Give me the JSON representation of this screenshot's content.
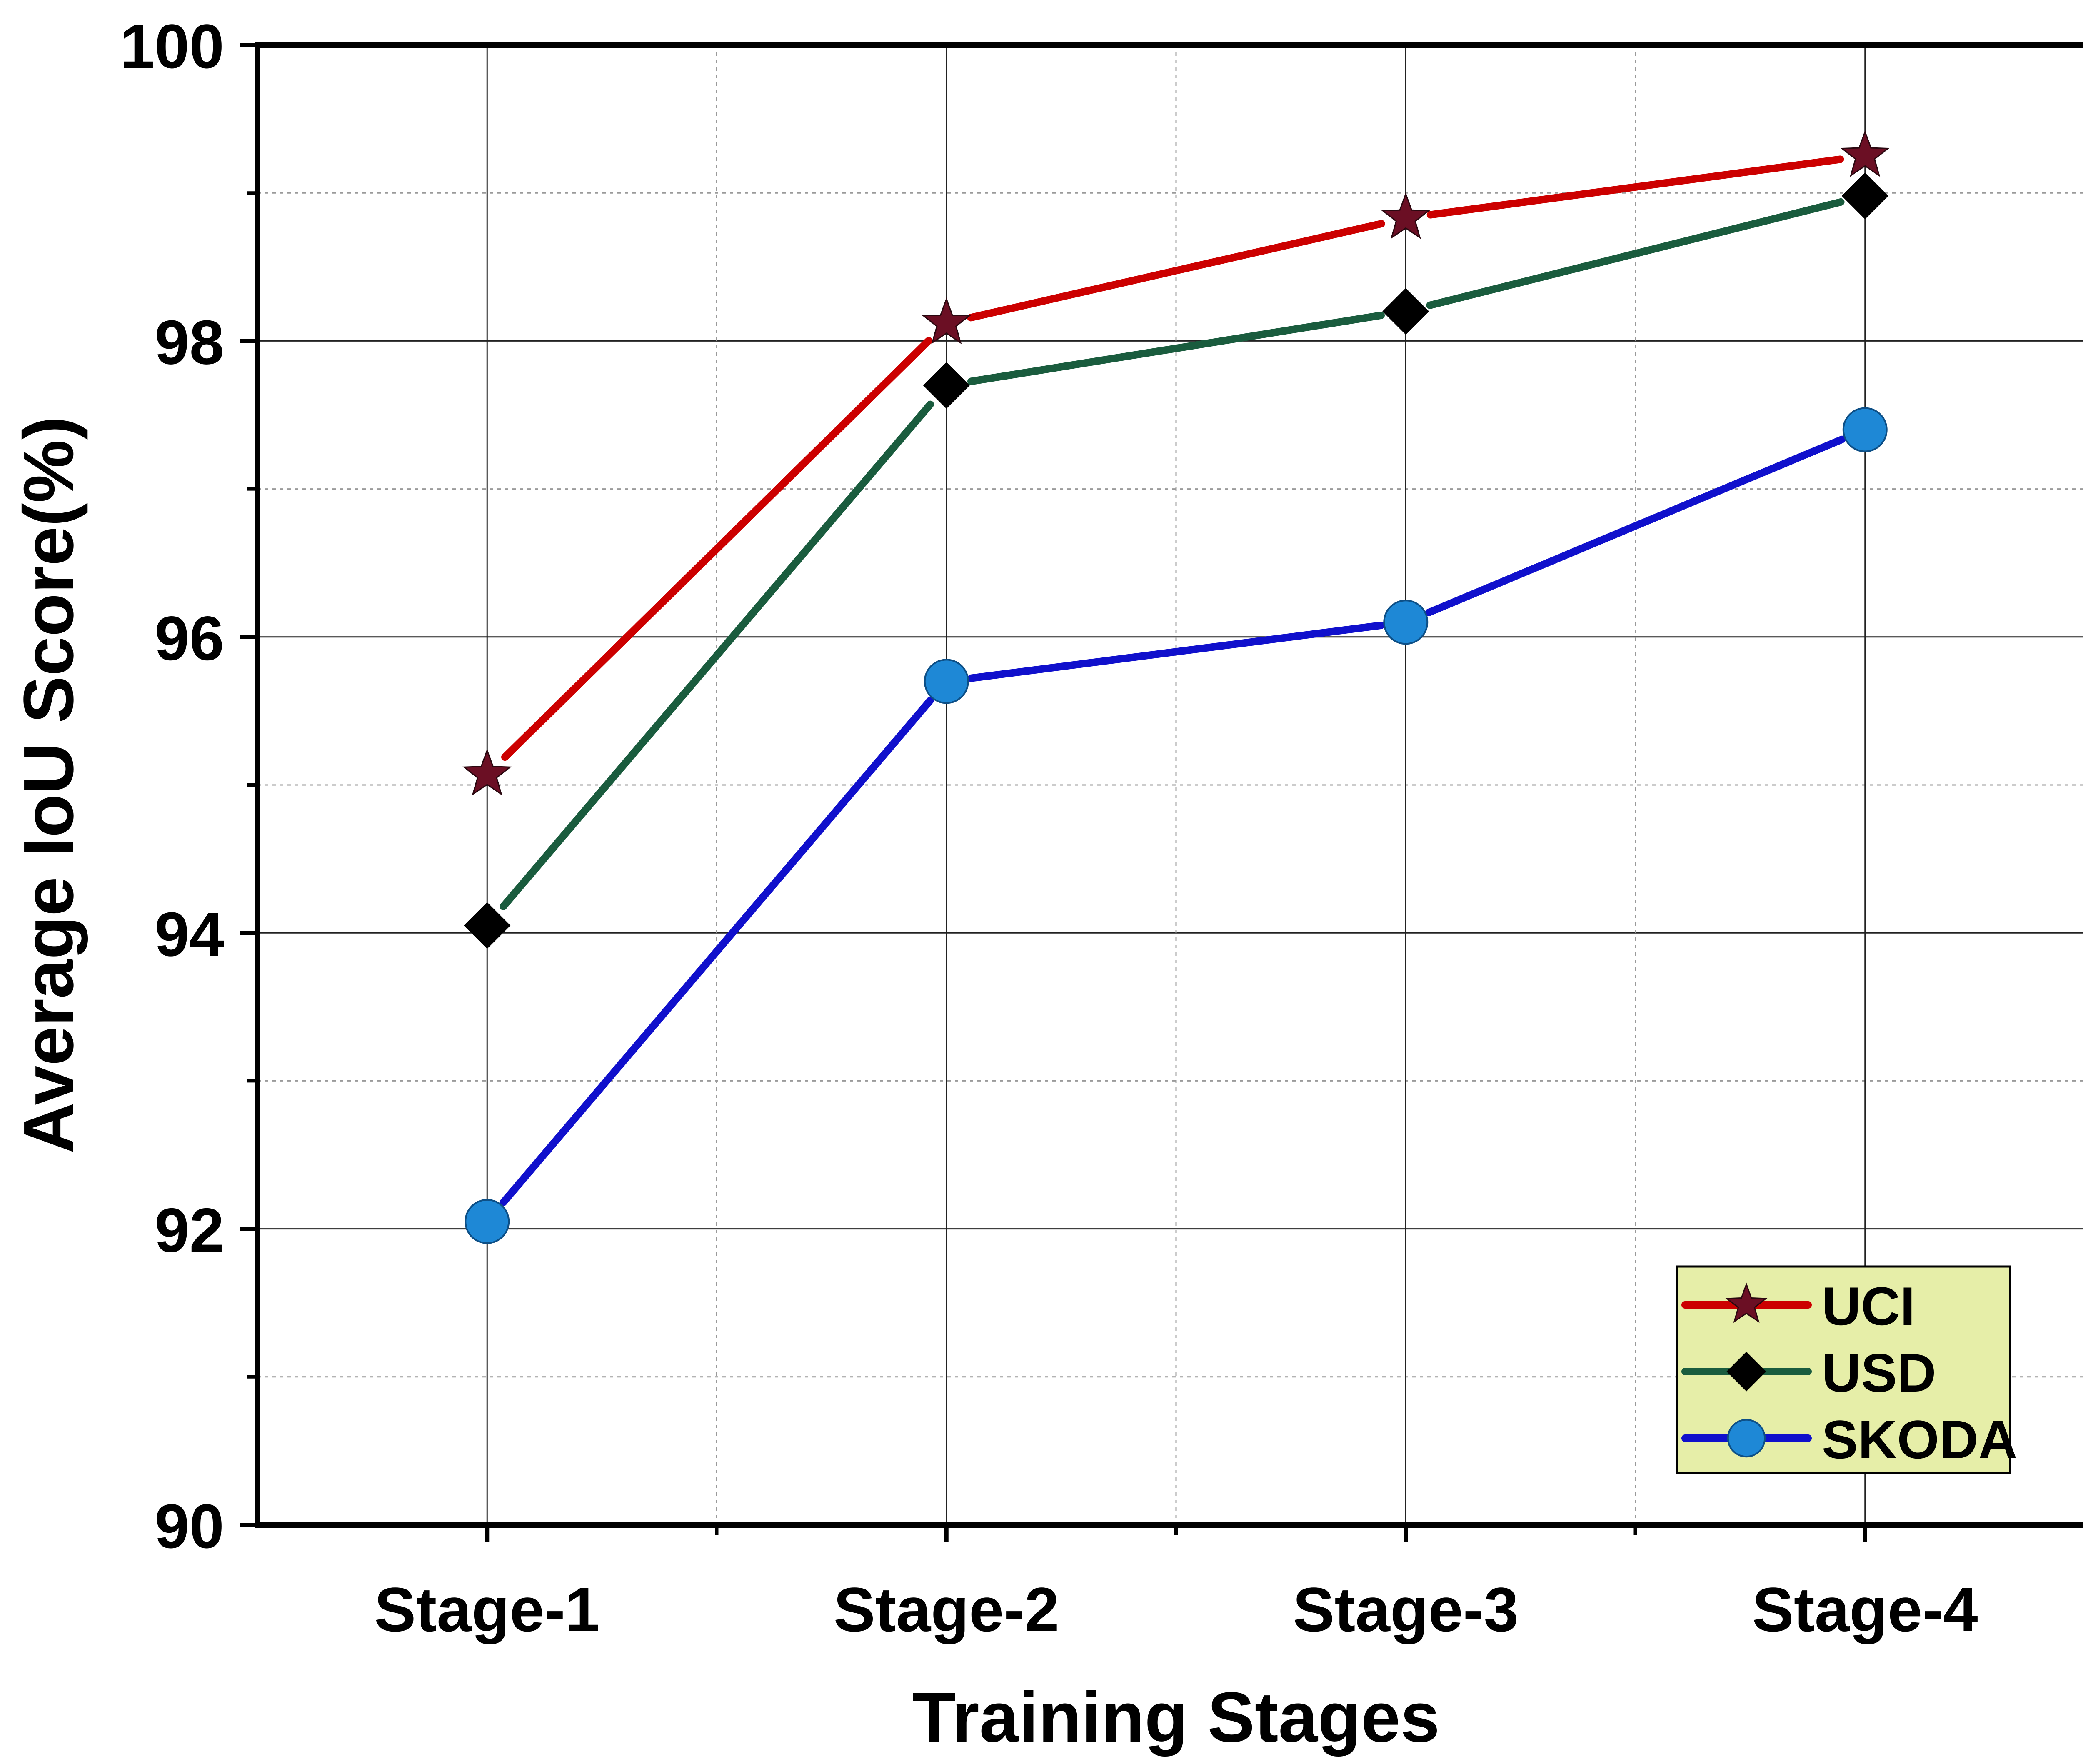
{
  "chart_data": {
    "type": "line",
    "categories": [
      "Stage-1",
      "Stage-2",
      "Stage-3",
      "Stage-4"
    ],
    "xlabel": "Training Stages",
    "ylabel": "Average IoU Score(%)",
    "ylim": [
      90,
      100
    ],
    "yticks": [
      90,
      92,
      94,
      96,
      98,
      100
    ],
    "grid": true,
    "legend_position": "bottom-right",
    "series": [
      {
        "name": "UCI",
        "values": [
          95.07,
          98.12,
          98.83,
          99.25
        ],
        "color": "#cc0000",
        "marker": "star",
        "marker_color": "#6b0f24"
      },
      {
        "name": "USD",
        "values": [
          94.05,
          97.7,
          98.2,
          98.98
        ],
        "color": "#1a5c3e",
        "marker": "diamond",
        "marker_color": "#000000"
      },
      {
        "name": "SKODA",
        "values": [
          92.05,
          95.7,
          96.1,
          97.4
        ],
        "color": "#1010cc",
        "marker": "circle",
        "marker_color": "#1e88d6"
      }
    ],
    "legend_background": "#e6eea8"
  }
}
